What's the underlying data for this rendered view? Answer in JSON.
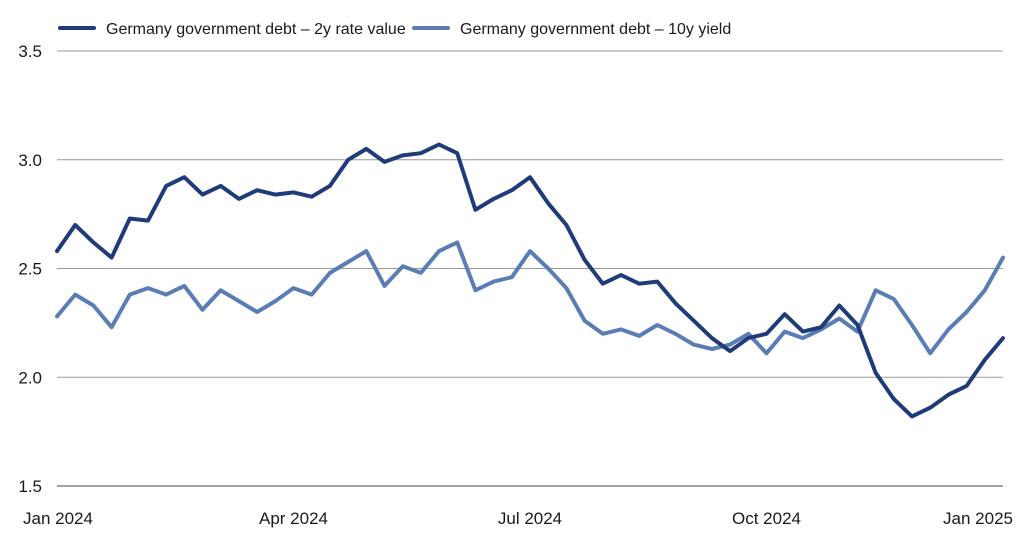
{
  "chart_data": {
    "type": "line",
    "title": "",
    "xlabel": "",
    "ylabel": "",
    "ylim": [
      1.5,
      3.5
    ],
    "yticks": [
      "1.5",
      "2.0",
      "2.5",
      "3.0",
      "3.5"
    ],
    "xlim": [
      0,
      52
    ],
    "x_tick_positions": [
      0,
      13,
      26,
      39,
      52
    ],
    "x_tick_labels": [
      "Jan 2024",
      "Apr 2024",
      "Jul 2024",
      "Oct 2024",
      "Jan 2025"
    ],
    "grid": "horizontal",
    "legend_position": "top-left",
    "x": [
      0,
      1,
      2,
      3,
      4,
      5,
      6,
      7,
      8,
      9,
      10,
      11,
      12,
      13,
      14,
      15,
      16,
      17,
      18,
      19,
      20,
      21,
      22,
      23,
      24,
      25,
      26,
      27,
      28,
      29,
      30,
      31,
      32,
      33,
      34,
      35,
      36,
      37,
      38,
      39,
      40,
      41,
      42,
      43,
      44,
      45,
      46,
      47,
      48,
      49,
      50,
      51,
      52
    ],
    "series": [
      {
        "name": "Germany government debt – 2y rate value",
        "color": "#1f3b7a",
        "values": [
          2.58,
          2.7,
          2.62,
          2.55,
          2.73,
          2.72,
          2.88,
          2.92,
          2.84,
          2.88,
          2.82,
          2.86,
          2.84,
          2.85,
          2.83,
          2.88,
          3.0,
          3.05,
          2.99,
          3.02,
          3.03,
          3.07,
          3.03,
          2.77,
          2.82,
          2.86,
          2.92,
          2.8,
          2.7,
          2.54,
          2.43,
          2.47,
          2.43,
          2.44,
          2.34,
          2.26,
          2.18,
          2.12,
          2.18,
          2.2,
          2.29,
          2.21,
          2.23,
          2.33,
          2.24,
          2.02,
          1.9,
          1.82,
          1.86,
          1.92,
          1.96,
          2.08,
          2.18
        ]
      },
      {
        "name": "Germany government debt – 10y yield",
        "color": "#5b7db5",
        "values": [
          2.28,
          2.38,
          2.33,
          2.23,
          2.38,
          2.41,
          2.38,
          2.42,
          2.31,
          2.4,
          2.35,
          2.3,
          2.35,
          2.41,
          2.38,
          2.48,
          2.53,
          2.58,
          2.42,
          2.51,
          2.48,
          2.58,
          2.62,
          2.4,
          2.44,
          2.46,
          2.58,
          2.5,
          2.41,
          2.26,
          2.2,
          2.22,
          2.19,
          2.24,
          2.2,
          2.15,
          2.13,
          2.15,
          2.2,
          2.11,
          2.21,
          2.18,
          2.22,
          2.27,
          2.21,
          2.4,
          2.36,
          2.24,
          2.11,
          2.22,
          2.3,
          2.4,
          2.55
        ]
      }
    ]
  }
}
